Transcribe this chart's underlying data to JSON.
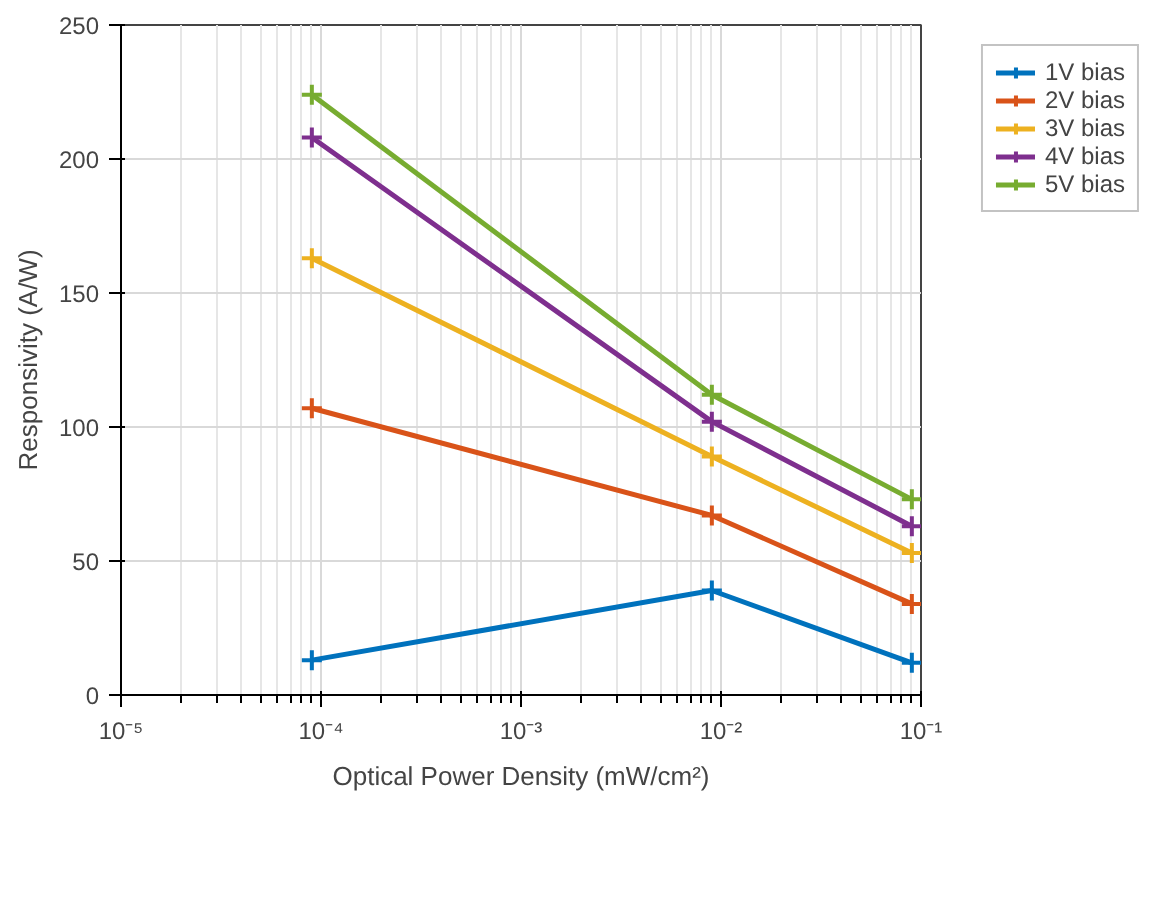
{
  "chart_data": {
    "type": "line",
    "xlabel": "Optical Power Density (mW/cm²)",
    "ylabel": "Responsivity (A/W)",
    "x": [
      9e-05,
      0.009,
      0.09
    ],
    "series": [
      {
        "name": "1V bias",
        "color": "#0072bd",
        "values": [
          13,
          39,
          12
        ]
      },
      {
        "name": "2V bias",
        "color": "#d95319",
        "values": [
          107,
          67,
          34
        ]
      },
      {
        "name": "3V bias",
        "color": "#edb120",
        "values": [
          163,
          89,
          53
        ]
      },
      {
        "name": "4V bias",
        "color": "#7e2f8e",
        "values": [
          208,
          102,
          63
        ]
      },
      {
        "name": "5V bias",
        "color": "#77ac30",
        "values": [
          224,
          112,
          73
        ]
      }
    ],
    "log": "x",
    "xlim": [
      1e-05,
      0.1
    ],
    "ylim": [
      0,
      250
    ],
    "xticks": [
      {
        "value": 1e-05,
        "label": "10⁻⁵"
      },
      {
        "value": 0.0001,
        "label": "10⁻⁴"
      },
      {
        "value": 0.001,
        "label": "10⁻³"
      },
      {
        "value": 0.01,
        "label": "10⁻²"
      },
      {
        "value": 0.1,
        "label": "10⁻¹"
      }
    ],
    "yticks": [
      0,
      50,
      100,
      150,
      200,
      250
    ],
    "grid": true,
    "legend": "top right",
    "marker": "cross",
    "line_style": "solid"
  }
}
